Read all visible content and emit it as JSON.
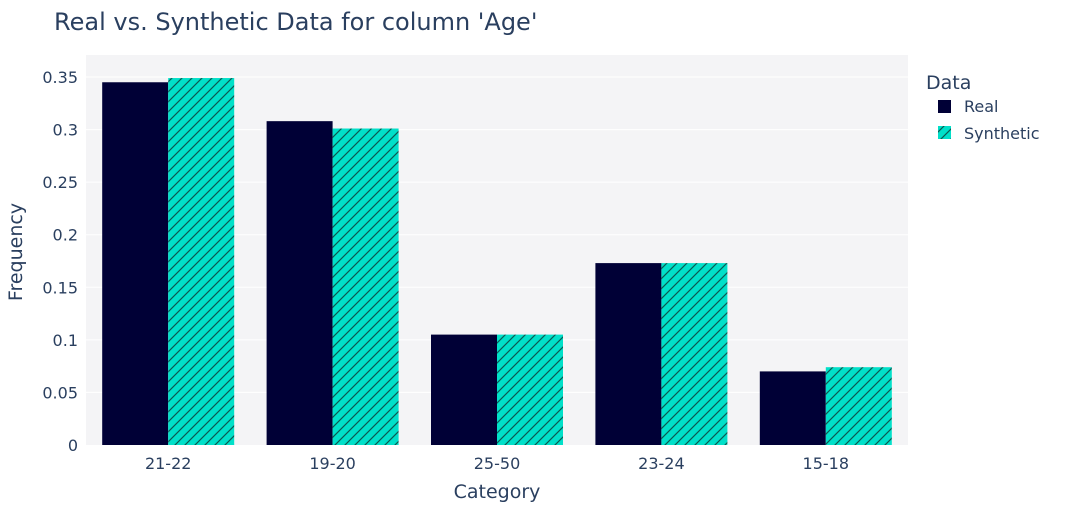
{
  "chart_data": {
    "type": "bar",
    "title": "Real vs. Synthetic Data for column 'Age'",
    "xlabel": "Category",
    "ylabel": "Frequency",
    "categories": [
      "21-22",
      "19-20",
      "25-50",
      "23-24",
      "15-18"
    ],
    "ylim": [
      0,
      0.35
    ],
    "yticks": [
      0,
      0.05,
      0.1,
      0.15,
      0.2,
      0.25,
      0.3,
      0.35
    ],
    "ytick_labels": [
      "0",
      "0.05",
      "0.1",
      "0.15",
      "0.2",
      "0.25",
      "0.3",
      "0.35"
    ],
    "grid": true,
    "legend": {
      "title": "Data",
      "placement": "right-top"
    },
    "series": [
      {
        "name": "Real",
        "color": "#000036",
        "pattern": "solid",
        "values": [
          0.345,
          0.308,
          0.105,
          0.173,
          0.07
        ]
      },
      {
        "name": "Synthetic",
        "color": "#01e0c9",
        "pattern": "diagonal-hatch",
        "values": [
          0.349,
          0.301,
          0.105,
          0.173,
          0.074
        ]
      }
    ],
    "plot_background": "#f4f4f6",
    "gridline_color": "#ffffff",
    "text_color": "#2a3f5f"
  }
}
